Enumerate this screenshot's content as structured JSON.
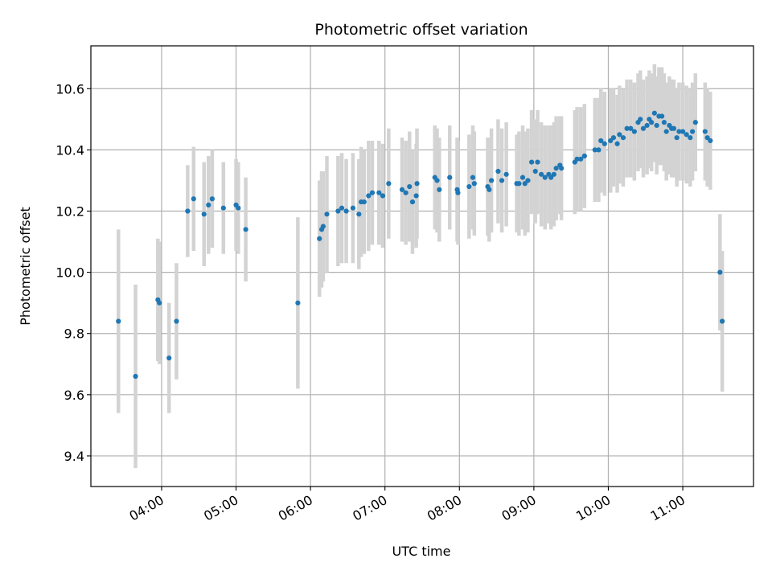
{
  "chart_data": {
    "type": "scatter",
    "title": "Photometric offset variation",
    "xlabel": "UTC time",
    "ylabel": "Photometric offset",
    "x_unit": "UTC hours (decimal)",
    "xlim": [
      3.05,
      11.95
    ],
    "ylim": [
      9.3,
      10.74
    ],
    "grid": true,
    "legend": "none",
    "x_ticks": [
      4,
      5,
      6,
      7,
      8,
      9,
      10,
      11
    ],
    "x_tick_labels": [
      "04:00",
      "05:00",
      "06:00",
      "07:00",
      "08:00",
      "09:00",
      "10:00",
      "11:00"
    ],
    "y_ticks": [
      9.4,
      9.6,
      9.8,
      10.0,
      10.2,
      10.4,
      10.6
    ],
    "y_tick_labels": [
      "9.4",
      "9.6",
      "9.8",
      "10.0",
      "10.2",
      "10.4",
      "10.6"
    ],
    "colors": {
      "points": "#1f77b4",
      "error_bars": "#d3d3d3",
      "grid": "#b0b0b0"
    },
    "points": [
      [
        3.42,
        9.84,
        0.3
      ],
      [
        3.65,
        9.66,
        0.3
      ],
      [
        3.95,
        9.91,
        0.2
      ],
      [
        3.97,
        9.9,
        0.2
      ],
      [
        4.1,
        9.72,
        0.18
      ],
      [
        4.2,
        9.84,
        0.19
      ],
      [
        4.35,
        10.2,
        0.15
      ],
      [
        4.43,
        10.24,
        0.17
      ],
      [
        4.57,
        10.19,
        0.17
      ],
      [
        4.63,
        10.22,
        0.16
      ],
      [
        4.68,
        10.24,
        0.16
      ],
      [
        4.83,
        10.21,
        0.15
      ],
      [
        5.0,
        10.22,
        0.15
      ],
      [
        5.03,
        10.21,
        0.15
      ],
      [
        5.13,
        10.14,
        0.17
      ],
      [
        5.83,
        9.9,
        0.28
      ],
      [
        6.12,
        10.11,
        0.19
      ],
      [
        6.15,
        10.14,
        0.19
      ],
      [
        6.17,
        10.15,
        0.18
      ],
      [
        6.22,
        10.19,
        0.19
      ],
      [
        6.37,
        10.2,
        0.18
      ],
      [
        6.42,
        10.21,
        0.18
      ],
      [
        6.48,
        10.2,
        0.17
      ],
      [
        6.57,
        10.21,
        0.18
      ],
      [
        6.65,
        10.19,
        0.18
      ],
      [
        6.68,
        10.23,
        0.18
      ],
      [
        6.72,
        10.23,
        0.17
      ],
      [
        6.78,
        10.25,
        0.18
      ],
      [
        6.83,
        10.26,
        0.17
      ],
      [
        6.92,
        10.26,
        0.17
      ],
      [
        6.97,
        10.25,
        0.17
      ],
      [
        7.05,
        10.29,
        0.18
      ],
      [
        7.23,
        10.27,
        0.17
      ],
      [
        7.28,
        10.26,
        0.17
      ],
      [
        7.33,
        10.28,
        0.18
      ],
      [
        7.37,
        10.23,
        0.17
      ],
      [
        7.42,
        10.25,
        0.17
      ],
      [
        7.43,
        10.29,
        0.18
      ],
      [
        7.67,
        10.31,
        0.17
      ],
      [
        7.7,
        10.3,
        0.17
      ],
      [
        7.73,
        10.27,
        0.17
      ],
      [
        7.87,
        10.31,
        0.17
      ],
      [
        7.97,
        10.27,
        0.17
      ],
      [
        7.98,
        10.26,
        0.17
      ],
      [
        8.13,
        10.28,
        0.17
      ],
      [
        8.2,
        10.29,
        0.17
      ],
      [
        8.18,
        10.31,
        0.17
      ],
      [
        8.38,
        10.28,
        0.16
      ],
      [
        8.4,
        10.27,
        0.17
      ],
      [
        8.43,
        10.3,
        0.17
      ],
      [
        8.52,
        10.33,
        0.17
      ],
      [
        8.57,
        10.3,
        0.17
      ],
      [
        8.63,
        10.32,
        0.17
      ],
      [
        8.77,
        10.29,
        0.16
      ],
      [
        8.8,
        10.29,
        0.17
      ],
      [
        8.85,
        10.31,
        0.17
      ],
      [
        8.88,
        10.29,
        0.17
      ],
      [
        8.92,
        10.3,
        0.17
      ],
      [
        8.97,
        10.36,
        0.17
      ],
      [
        9.02,
        10.33,
        0.17
      ],
      [
        9.05,
        10.36,
        0.17
      ],
      [
        9.1,
        10.32,
        0.17
      ],
      [
        9.15,
        10.31,
        0.17
      ],
      [
        9.2,
        10.32,
        0.16
      ],
      [
        9.23,
        10.31,
        0.17
      ],
      [
        9.27,
        10.32,
        0.17
      ],
      [
        9.3,
        10.34,
        0.17
      ],
      [
        9.35,
        10.35,
        0.16
      ],
      [
        9.37,
        10.34,
        0.17
      ],
      [
        9.55,
        10.36,
        0.17
      ],
      [
        9.58,
        10.37,
        0.17
      ],
      [
        9.63,
        10.37,
        0.17
      ],
      [
        9.68,
        10.38,
        0.17
      ],
      [
        9.82,
        10.4,
        0.17
      ],
      [
        9.87,
        10.4,
        0.17
      ],
      [
        9.9,
        10.43,
        0.17
      ],
      [
        9.95,
        10.42,
        0.17
      ],
      [
        10.03,
        10.43,
        0.17
      ],
      [
        10.07,
        10.44,
        0.16
      ],
      [
        10.12,
        10.42,
        0.16
      ],
      [
        10.15,
        10.45,
        0.16
      ],
      [
        10.2,
        10.44,
        0.16
      ],
      [
        10.25,
        10.47,
        0.16
      ],
      [
        10.3,
        10.47,
        0.16
      ],
      [
        10.35,
        10.46,
        0.16
      ],
      [
        10.4,
        10.49,
        0.16
      ],
      [
        10.43,
        10.5,
        0.16
      ],
      [
        10.47,
        10.47,
        0.16
      ],
      [
        10.52,
        10.48,
        0.16
      ],
      [
        10.55,
        10.5,
        0.16
      ],
      [
        10.58,
        10.49,
        0.16
      ],
      [
        10.62,
        10.52,
        0.16
      ],
      [
        10.65,
        10.48,
        0.16
      ],
      [
        10.68,
        10.51,
        0.16
      ],
      [
        10.72,
        10.51,
        0.16
      ],
      [
        10.75,
        10.49,
        0.16
      ],
      [
        10.78,
        10.46,
        0.16
      ],
      [
        10.82,
        10.48,
        0.16
      ],
      [
        10.85,
        10.47,
        0.16
      ],
      [
        10.88,
        10.47,
        0.16
      ],
      [
        10.92,
        10.44,
        0.16
      ],
      [
        10.95,
        10.46,
        0.16
      ],
      [
        11.0,
        10.46,
        0.16
      ],
      [
        11.05,
        10.45,
        0.16
      ],
      [
        11.1,
        10.44,
        0.16
      ],
      [
        11.13,
        10.46,
        0.16
      ],
      [
        11.17,
        10.49,
        0.16
      ],
      [
        11.3,
        10.46,
        0.16
      ],
      [
        11.33,
        10.44,
        0.16
      ],
      [
        11.37,
        10.43,
        0.16
      ],
      [
        11.5,
        10.0,
        0.19
      ],
      [
        11.53,
        9.84,
        0.23
      ]
    ]
  }
}
